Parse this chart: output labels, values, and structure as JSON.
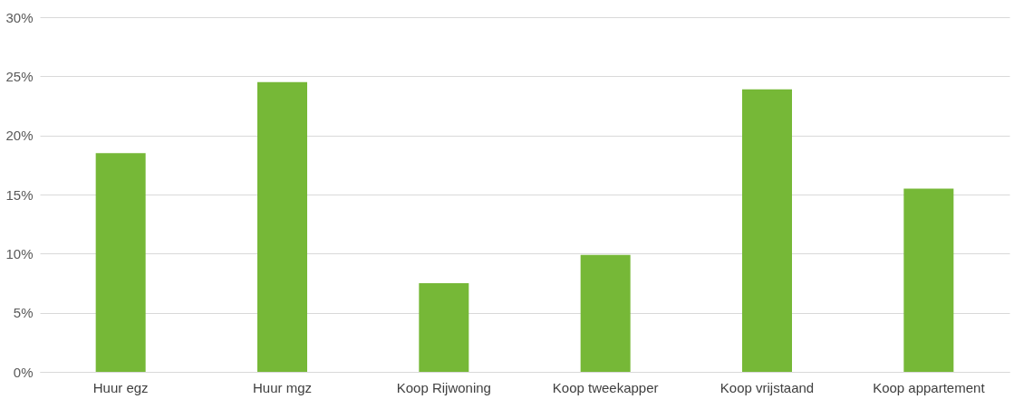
{
  "chart_data": {
    "type": "bar",
    "categories": [
      "Huur egz",
      "Huur mgz",
      "Koop Rijwoning",
      "Koop tweekapper",
      "Koop vrijstaand",
      "Koop appartement"
    ],
    "values": [
      18.5,
      24.5,
      7.5,
      9.9,
      23.9,
      15.5
    ],
    "color": "#76b837",
    "ylim": [
      0,
      30
    ],
    "yticks": [
      {
        "value": 0,
        "label": "0%"
      },
      {
        "value": 5,
        "label": "5%"
      },
      {
        "value": 10,
        "label": "10%"
      },
      {
        "value": 15,
        "label": "15%"
      },
      {
        "value": 20,
        "label": "20%"
      },
      {
        "value": 25,
        "label": "25%"
      },
      {
        "value": 30,
        "label": "30%"
      }
    ],
    "grid": "y"
  }
}
